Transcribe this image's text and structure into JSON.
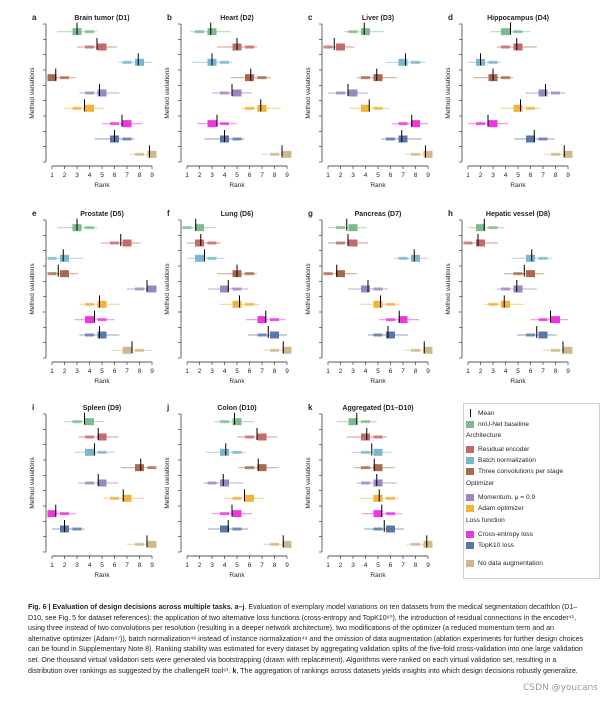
{
  "figure": {
    "ylabel": "Method variations",
    "xlabel": "Rank",
    "ranks": [
      "1",
      "2",
      "3",
      "4",
      "5",
      "6",
      "7",
      "8",
      "9"
    ],
    "panels": [
      {
        "letter": "a",
        "title": "Brain tumor (D1)"
      },
      {
        "letter": "b",
        "title": "Heart (D2)"
      },
      {
        "letter": "c",
        "title": "Liver (D3)"
      },
      {
        "letter": "d",
        "title": "Hippocampus (D4)"
      },
      {
        "letter": "e",
        "title": "Prostate (D5)"
      },
      {
        "letter": "f",
        "title": "Lung (D6)"
      },
      {
        "letter": "g",
        "title": "Pancreas (D7)"
      },
      {
        "letter": "h",
        "title": "Hepatic vessel (D8)"
      },
      {
        "letter": "i",
        "title": "Spleen (D9)"
      },
      {
        "letter": "j",
        "title": "Colon (D10)"
      },
      {
        "letter": "k",
        "title": "Aggregated (D1–D10)"
      }
    ]
  },
  "colors": {
    "baseline": "#7dbb8e",
    "residual": "#c26b6b",
    "batchnorm": "#7cb6cc",
    "three_conv": "#a9694d",
    "momentum": "#9b87bf",
    "adam": "#f2b23c",
    "ce": "#ee35e0",
    "topk": "#5b77a8",
    "noaug": "#cfb98a"
  },
  "legend": {
    "mean": "Mean",
    "baseline": "nnU-Net baseline",
    "architecture": "Architecture",
    "residual": "Residual encoder",
    "batchnorm": "Batch normalization",
    "three_conv": "Three convolutions per stage",
    "optimizer": "Optimizer",
    "momentum": "Momentum, μ = 0.9",
    "adam": "Adam optimizer",
    "loss": "Loss function",
    "ce": "Cross-entropy loss",
    "topk": "TopK10 loss",
    "noaug": "No data augmentation"
  },
  "chart_data": [
    {
      "type": "scatter",
      "panel": "a",
      "title": "Brain tumor (D1)",
      "xlabel": "Rank",
      "ylabel": "Method variations",
      "xlim": [
        1,
        9
      ],
      "series": [
        {
          "key": "baseline",
          "mean": 3.0
        },
        {
          "key": "residual",
          "mean": 4.6
        },
        {
          "key": "batchnorm",
          "mean": 7.9
        },
        {
          "key": "three_conv",
          "mean": 1.3
        },
        {
          "key": "momentum",
          "mean": 4.8
        },
        {
          "key": "adam",
          "mean": 3.6
        },
        {
          "key": "ce",
          "mean": 6.6
        },
        {
          "key": "topk",
          "mean": 6.0
        },
        {
          "key": "noaug",
          "mean": 8.8
        }
      ]
    },
    {
      "type": "scatter",
      "panel": "b",
      "title": "Heart (D2)",
      "xlabel": "Rank",
      "ylabel": "Method variations",
      "xlim": [
        1,
        9
      ],
      "series": [
        {
          "key": "baseline",
          "mean": 2.9
        },
        {
          "key": "residual",
          "mean": 5.0
        },
        {
          "key": "batchnorm",
          "mean": 3.0
        },
        {
          "key": "three_conv",
          "mean": 6.1
        },
        {
          "key": "momentum",
          "mean": 4.6
        },
        {
          "key": "adam",
          "mean": 6.9
        },
        {
          "key": "ce",
          "mean": 3.4
        },
        {
          "key": "topk",
          "mean": 4.0
        },
        {
          "key": "noaug",
          "mean": 8.6
        }
      ]
    },
    {
      "type": "scatter",
      "panel": "c",
      "title": "Liver (D3)",
      "xlabel": "Rank",
      "ylabel": "Method variations",
      "xlim": [
        1,
        9
      ],
      "series": [
        {
          "key": "baseline",
          "mean": 3.9
        },
        {
          "key": "residual",
          "mean": 1.5
        },
        {
          "key": "batchnorm",
          "mean": 7.2
        },
        {
          "key": "three_conv",
          "mean": 4.9
        },
        {
          "key": "momentum",
          "mean": 2.6
        },
        {
          "key": "adam",
          "mean": 4.3
        },
        {
          "key": "ce",
          "mean": 7.7
        },
        {
          "key": "topk",
          "mean": 6.9
        },
        {
          "key": "noaug",
          "mean": 8.8
        }
      ]
    },
    {
      "type": "scatter",
      "panel": "d",
      "title": "Hippocampus (D4)",
      "xlabel": "Rank",
      "ylabel": "Method variations",
      "xlim": [
        1,
        9
      ],
      "series": [
        {
          "key": "baseline",
          "mean": 4.4
        },
        {
          "key": "residual",
          "mean": 4.9
        },
        {
          "key": "batchnorm",
          "mean": 2.0
        },
        {
          "key": "three_conv",
          "mean": 3.0
        },
        {
          "key": "momentum",
          "mean": 7.2
        },
        {
          "key": "adam",
          "mean": 5.2
        },
        {
          "key": "ce",
          "mean": 2.6
        },
        {
          "key": "topk",
          "mean": 6.3
        },
        {
          "key": "noaug",
          "mean": 8.7
        }
      ]
    },
    {
      "type": "scatter",
      "panel": "e",
      "title": "Prostate (D5)",
      "xlabel": "Rank",
      "ylabel": "Method variations",
      "xlim": [
        1,
        9
      ],
      "series": [
        {
          "key": "baseline",
          "mean": 3.0
        },
        {
          "key": "residual",
          "mean": 6.5
        },
        {
          "key": "batchnorm",
          "mean": 1.9
        },
        {
          "key": "three_conv",
          "mean": 1.5
        },
        {
          "key": "momentum",
          "mean": 8.6
        },
        {
          "key": "adam",
          "mean": 4.8
        },
        {
          "key": "ce",
          "mean": 4.4
        },
        {
          "key": "topk",
          "mean": 4.8
        },
        {
          "key": "noaug",
          "mean": 7.4
        }
      ]
    },
    {
      "type": "scatter",
      "panel": "f",
      "title": "Lung (D6)",
      "xlabel": "Rank",
      "ylabel": "Method variations",
      "xlim": [
        1,
        9
      ],
      "series": [
        {
          "key": "baseline",
          "mean": 1.7
        },
        {
          "key": "residual",
          "mean": 2.1
        },
        {
          "key": "batchnorm",
          "mean": 2.4
        },
        {
          "key": "three_conv",
          "mean": 5.0
        },
        {
          "key": "momentum",
          "mean": 4.3
        },
        {
          "key": "adam",
          "mean": 5.2
        },
        {
          "key": "ce",
          "mean": 7.3
        },
        {
          "key": "topk",
          "mean": 7.5
        },
        {
          "key": "noaug",
          "mean": 8.7
        }
      ]
    },
    {
      "type": "scatter",
      "panel": "g",
      "title": "Pancreas (D7)",
      "xlabel": "Rank",
      "ylabel": "Method variations",
      "xlim": [
        1,
        9
      ],
      "series": [
        {
          "key": "baseline",
          "mean": 2.5
        },
        {
          "key": "residual",
          "mean": 2.6
        },
        {
          "key": "batchnorm",
          "mean": 7.9
        },
        {
          "key": "three_conv",
          "mean": 1.7
        },
        {
          "key": "momentum",
          "mean": 4.2
        },
        {
          "key": "adam",
          "mean": 5.2
        },
        {
          "key": "ce",
          "mean": 6.7
        },
        {
          "key": "topk",
          "mean": 5.8
        },
        {
          "key": "noaug",
          "mean": 8.7
        }
      ]
    },
    {
      "type": "scatter",
      "panel": "h",
      "title": "Hepatic vessel (D8)",
      "xlabel": "Rank",
      "ylabel": "Method variations",
      "xlim": [
        1,
        9
      ],
      "series": [
        {
          "key": "baseline",
          "mean": 2.3
        },
        {
          "key": "residual",
          "mean": 1.8
        },
        {
          "key": "batchnorm",
          "mean": 6.1
        },
        {
          "key": "three_conv",
          "mean": 5.5
        },
        {
          "key": "momentum",
          "mean": 4.9
        },
        {
          "key": "adam",
          "mean": 3.9
        },
        {
          "key": "ce",
          "mean": 7.6
        },
        {
          "key": "topk",
          "mean": 6.5
        },
        {
          "key": "noaug",
          "mean": 8.6
        }
      ]
    },
    {
      "type": "scatter",
      "panel": "i",
      "title": "Spleen (D9)",
      "xlabel": "Rank",
      "ylabel": "Method variations",
      "xlim": [
        1,
        9
      ],
      "series": [
        {
          "key": "baseline",
          "mean": 3.6
        },
        {
          "key": "residual",
          "mean": 4.7
        },
        {
          "key": "batchnorm",
          "mean": 4.4
        },
        {
          "key": "three_conv",
          "mean": 8.1
        },
        {
          "key": "momentum",
          "mean": 4.7
        },
        {
          "key": "adam",
          "mean": 6.7
        },
        {
          "key": "ce",
          "mean": 1.3
        },
        {
          "key": "topk",
          "mean": 2.0
        },
        {
          "key": "noaug",
          "mean": 8.6
        }
      ]
    },
    {
      "type": "scatter",
      "panel": "j",
      "title": "Colon (D10)",
      "xlabel": "Rank",
      "ylabel": "Method variations",
      "xlim": [
        1,
        9
      ],
      "series": [
        {
          "key": "baseline",
          "mean": 4.8
        },
        {
          "key": "residual",
          "mean": 6.6
        },
        {
          "key": "batchnorm",
          "mean": 4.1
        },
        {
          "key": "three_conv",
          "mean": 6.7
        },
        {
          "key": "momentum",
          "mean": 3.9
        },
        {
          "key": "adam",
          "mean": 5.6
        },
        {
          "key": "ce",
          "mean": 4.6
        },
        {
          "key": "topk",
          "mean": 4.3
        },
        {
          "key": "noaug",
          "mean": 8.7
        }
      ]
    },
    {
      "type": "scatter",
      "panel": "k",
      "title": "Aggregated (D1–D10)",
      "xlabel": "Rank",
      "ylabel": "Method variations",
      "xlim": [
        1,
        9
      ],
      "series": [
        {
          "key": "baseline",
          "mean": 3.3
        },
        {
          "key": "residual",
          "mean": 4.1
        },
        {
          "key": "batchnorm",
          "mean": 4.5
        },
        {
          "key": "three_conv",
          "mean": 4.7
        },
        {
          "key": "momentum",
          "mean": 4.9
        },
        {
          "key": "adam",
          "mean": 5.1
        },
        {
          "key": "ce",
          "mean": 5.3
        },
        {
          "key": "topk",
          "mean": 5.5
        },
        {
          "key": "noaug",
          "mean": 8.9
        }
      ]
    }
  ],
  "caption": {
    "label": "Fig. 6 | Evaluation of design decisions across multiple tasks. a–j",
    "text": ". Evaluation of exemplary model variations on ten datasets from the medical segmentation decathlon (D1–D10, see Fig. 5 for dataset references): the application of two alternative loss functions (cross-entropy and TopK10⁶⁰), the introduction of residual connections in the encoder⁴¹, using three instead of two convolutions per resolution (resulting in a deeper network architecture), two modifications of the optimizer (a reduced momentum term and an alternative optimizer (Adam⁴⁷)), batch normalization⁴⁸ instead of instance normalization⁴⁹ and the omission of data augmentation (ablation experiments for further design choices can be found in Supplementary Note 8). Ranking stability was estimated for every dataset by aggregating validation splits of the five-fold cross-validation into one large validation set. One thousand virtual validation sets were generated via bootstrapping (drawn with replacement). Algorithms were ranked on each virtual validation set, resulting in a distribution over rankings as suggested by the challengeR tool⁶¹.",
    "label2": "k",
    "text2": ", The aggregation of rankings across datasets yields insights into which design decisions robustly generalize."
  },
  "watermark": "CSDN @youcans"
}
